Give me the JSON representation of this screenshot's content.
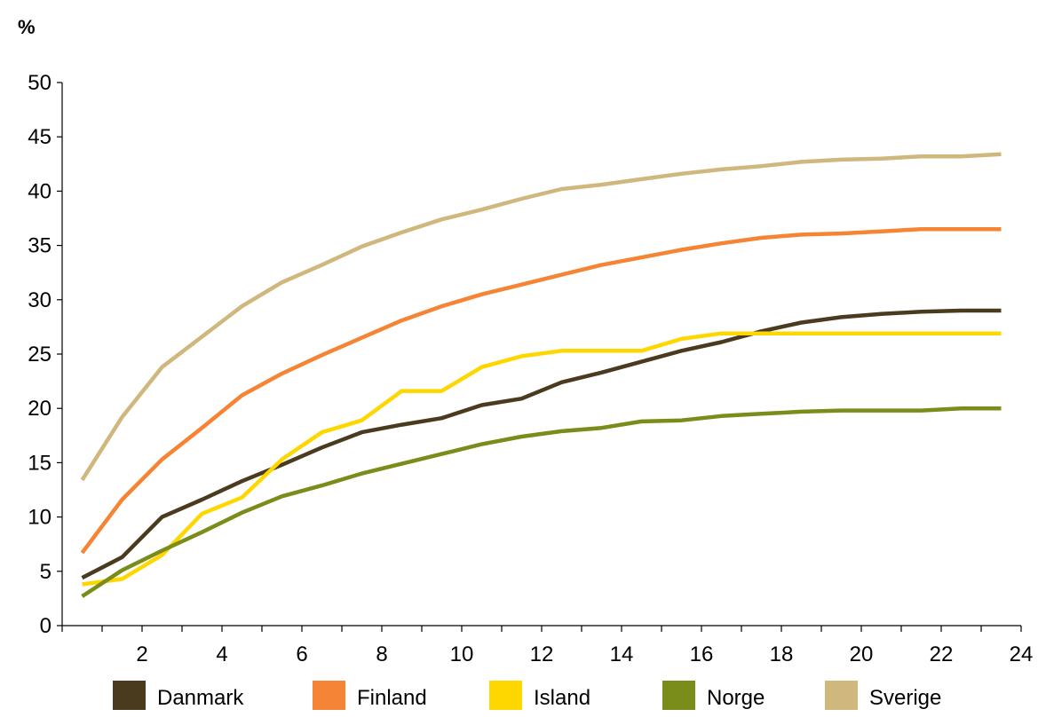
{
  "chart_data": {
    "type": "line",
    "unit_label": "%",
    "xlim": [
      0,
      24
    ],
    "ylim": [
      0,
      50
    ],
    "x_ticks": [
      2,
      4,
      6,
      8,
      10,
      12,
      14,
      16,
      18,
      20,
      22,
      24
    ],
    "y_ticks": [
      0,
      5,
      10,
      15,
      20,
      25,
      30,
      35,
      40,
      45,
      50
    ],
    "grid": false,
    "legend_position": "bottom",
    "x": [
      0.5,
      1.5,
      2.5,
      3.5,
      4.5,
      5.5,
      6.5,
      7.5,
      8.5,
      9.5,
      10.5,
      11.5,
      12.5,
      13.5,
      14.5,
      15.5,
      16.5,
      17.5,
      18.5,
      19.5,
      20.5,
      21.5,
      22.5,
      23.5
    ],
    "series": [
      {
        "name": "Danmark",
        "color": "#4a3b1f",
        "values": [
          4.4,
          6.3,
          10.0,
          11.6,
          13.3,
          14.8,
          16.4,
          17.8,
          18.5,
          19.1,
          20.3,
          20.9,
          22.4,
          23.3,
          24.3,
          25.3,
          26.1,
          27.1,
          27.9,
          28.4,
          28.7,
          28.9,
          29.0,
          29.0
        ]
      },
      {
        "name": "Finland",
        "color": "#f58434",
        "values": [
          6.7,
          11.6,
          15.3,
          18.2,
          21.2,
          23.2,
          24.9,
          26.5,
          28.1,
          29.4,
          30.5,
          31.4,
          32.3,
          33.2,
          33.9,
          34.6,
          35.2,
          35.7,
          36.0,
          36.1,
          36.3,
          36.5,
          36.5,
          36.5
        ]
      },
      {
        "name": "Island",
        "color": "#ffd700",
        "values": [
          3.8,
          4.3,
          6.5,
          10.3,
          11.8,
          15.3,
          17.8,
          18.9,
          21.6,
          21.6,
          23.8,
          24.8,
          25.3,
          25.3,
          25.3,
          26.4,
          26.9,
          26.9,
          26.9,
          26.9,
          26.9,
          26.9,
          26.9,
          26.9
        ]
      },
      {
        "name": "Norge",
        "color": "#7a8c1a",
        "values": [
          2.7,
          5.1,
          6.9,
          8.6,
          10.4,
          11.9,
          12.9,
          14.0,
          14.9,
          15.8,
          16.7,
          17.4,
          17.9,
          18.2,
          18.8,
          18.9,
          19.3,
          19.5,
          19.7,
          19.8,
          19.8,
          19.8,
          20.0,
          20.0
        ]
      },
      {
        "name": "Sverige",
        "color": "#cfb77d",
        "values": [
          13.4,
          19.2,
          23.8,
          26.6,
          29.4,
          31.6,
          33.2,
          34.9,
          36.2,
          37.4,
          38.3,
          39.3,
          40.2,
          40.6,
          41.1,
          41.6,
          42.0,
          42.3,
          42.7,
          42.9,
          43.0,
          43.2,
          43.2,
          43.4
        ]
      }
    ]
  }
}
